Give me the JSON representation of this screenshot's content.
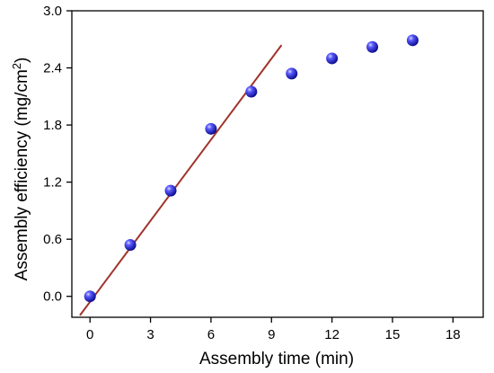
{
  "chart_data": {
    "type": "scatter",
    "title": "",
    "xlabel": "Assembly time (min)",
    "ylabel_main": "Assembly efficiency (mg/cm",
    "ylabel_sup": "2",
    "ylabel_end": ")",
    "xlim": [
      -0.9,
      19.5
    ],
    "ylim": [
      -0.22,
      3.0
    ],
    "x_ticks": [
      0,
      3,
      6,
      9,
      12,
      15,
      18
    ],
    "y_ticks": [
      0.0,
      0.6,
      1.2,
      1.8,
      2.4,
      3.0
    ],
    "x_tick_labels": [
      "0",
      "3",
      "6",
      "9",
      "12",
      "15",
      "18"
    ],
    "y_tick_labels": [
      "0.0",
      "0.6",
      "1.2",
      "1.8",
      "2.4",
      "3.0"
    ],
    "grid": false,
    "series": [
      {
        "points": [
          {
            "x": 0,
            "y": 0.0
          },
          {
            "x": 2,
            "y": 0.54
          },
          {
            "x": 4,
            "y": 1.11
          },
          {
            "x": 6,
            "y": 1.76
          },
          {
            "x": 8,
            "y": 2.15
          },
          {
            "x": 10,
            "y": 2.34
          },
          {
            "x": 12,
            "y": 2.5
          },
          {
            "x": 14,
            "y": 2.62
          },
          {
            "x": 16,
            "y": 2.69
          }
        ],
        "marker_color": "#2a2ae0"
      }
    ],
    "fit_line": {
      "x_start": -0.5,
      "y_start": -0.2,
      "x_end": 9.5,
      "y_end": 2.64,
      "color": "#a0342a"
    }
  }
}
